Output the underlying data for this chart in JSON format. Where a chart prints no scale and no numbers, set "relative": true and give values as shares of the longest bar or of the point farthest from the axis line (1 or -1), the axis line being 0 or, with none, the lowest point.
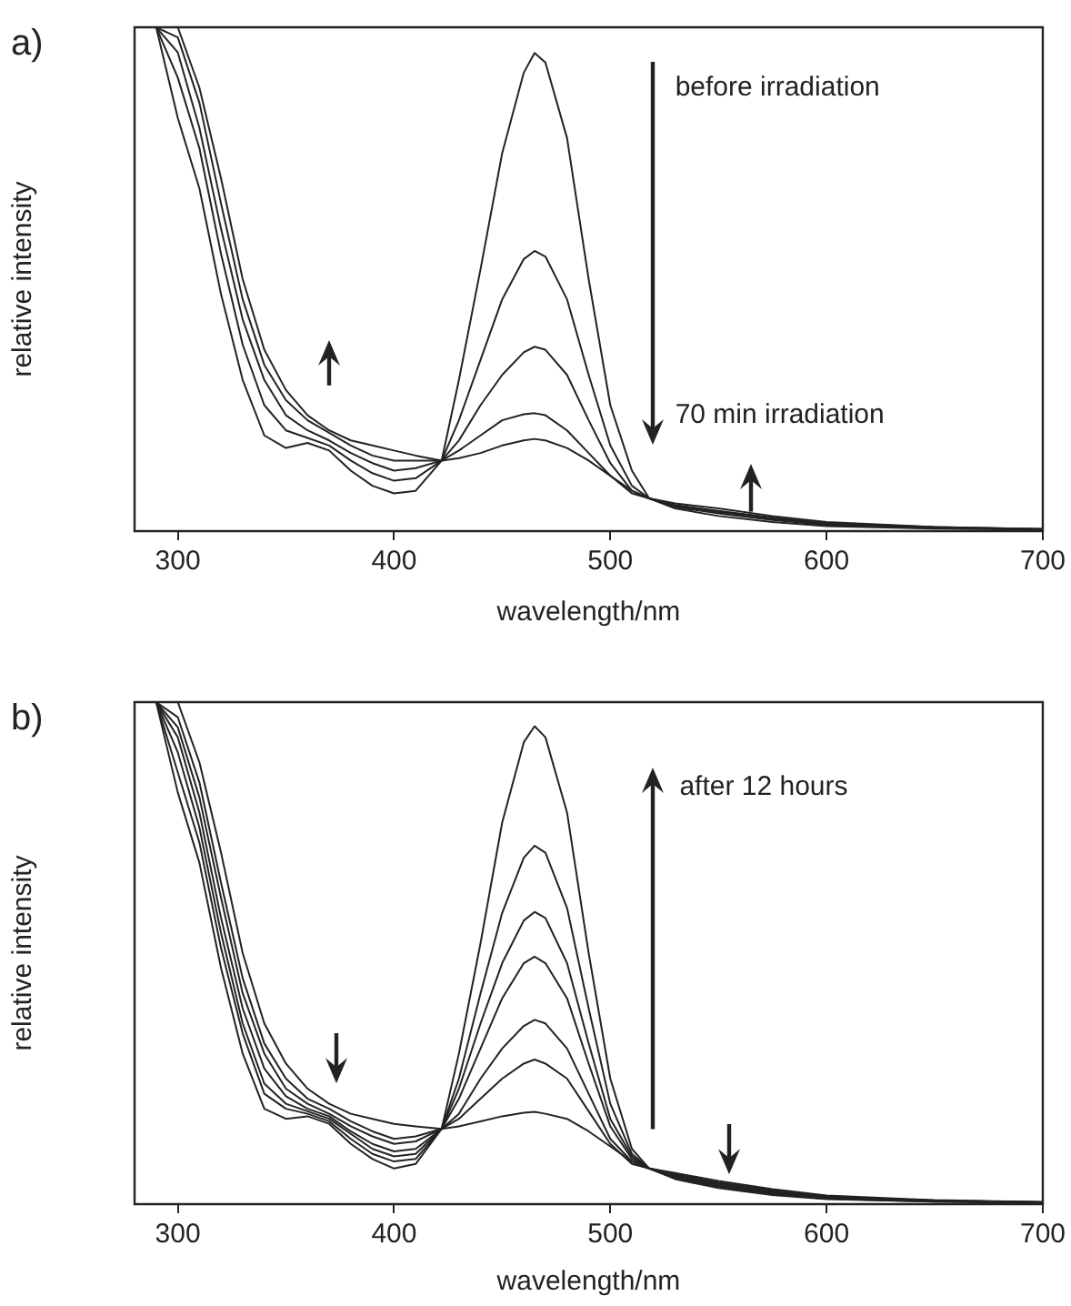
{
  "chart_data": [
    {
      "type": "line",
      "title": "a)",
      "xlabel": "wavelength/nm",
      "ylabel": "relative intensity",
      "relative": true,
      "tick_labels": "x",
      "grid": false,
      "legend": false,
      "marker": "none",
      "line_style": "solid",
      "x": [
        290,
        300,
        310,
        320,
        330,
        340,
        350,
        360,
        370,
        380,
        390,
        400,
        410,
        422,
        430,
        440,
        450,
        460,
        465,
        470,
        480,
        490,
        500,
        510,
        518,
        530,
        550,
        575,
        600,
        650,
        700
      ],
      "xlim": [
        280,
        700
      ],
      "xticks": [
        300,
        400,
        500,
        600,
        700
      ],
      "annotations": [
        "before irradiation",
        "70 min irradiation"
      ],
      "series": [
        {
          "color": "#222222",
          "values": [
            1,
            0.82,
            0.68,
            0.47,
            0.3,
            0.19,
            0.165,
            0.175,
            0.16,
            0.12,
            0.09,
            0.075,
            0.08,
            0.14,
            0.3,
            0.52,
            0.75,
            0.91,
            0.949,
            0.93,
            0.78,
            0.5,
            0.25,
            0.12,
            0.065,
            0.045,
            0.03,
            0.018,
            0.01,
            0.005,
            0.003
          ]
        },
        {
          "color": "#222222",
          "values": [
            1,
            0.9,
            0.76,
            0.55,
            0.37,
            0.25,
            0.2,
            0.185,
            0.17,
            0.14,
            0.115,
            0.1,
            0.105,
            0.14,
            0.22,
            0.34,
            0.46,
            0.54,
            0.556,
            0.545,
            0.46,
            0.31,
            0.17,
            0.09,
            0.065,
            0.048,
            0.035,
            0.022,
            0.012,
            0.006,
            0.003
          ]
        },
        {
          "color": "#222222",
          "values": [
            1,
            0.95,
            0.8,
            0.6,
            0.42,
            0.3,
            0.23,
            0.2,
            0.18,
            0.155,
            0.135,
            0.12,
            0.125,
            0.14,
            0.18,
            0.25,
            0.31,
            0.355,
            0.366,
            0.36,
            0.31,
            0.22,
            0.135,
            0.08,
            0.065,
            0.05,
            0.038,
            0.025,
            0.014,
            0.007,
            0.004
          ]
        },
        {
          "color": "#222222",
          "values": [
            1,
            0.98,
            0.85,
            0.65,
            0.46,
            0.33,
            0.26,
            0.22,
            0.195,
            0.17,
            0.15,
            0.14,
            0.14,
            0.14,
            0.16,
            0.19,
            0.22,
            0.232,
            0.234,
            0.23,
            0.2,
            0.155,
            0.11,
            0.075,
            0.065,
            0.052,
            0.04,
            0.027,
            0.016,
            0.008,
            0.004
          ]
        },
        {
          "color": "#222222",
          "values": [
            1,
            1,
            0.88,
            0.7,
            0.5,
            0.36,
            0.28,
            0.23,
            0.2,
            0.18,
            0.17,
            0.16,
            0.15,
            0.14,
            0.145,
            0.155,
            0.17,
            0.18,
            0.183,
            0.18,
            0.165,
            0.14,
            0.11,
            0.08,
            0.065,
            0.055,
            0.045,
            0.03,
            0.018,
            0.008,
            0.004
          ]
        }
      ]
    },
    {
      "type": "line",
      "title": "b)",
      "xlabel": "wavelength/nm",
      "ylabel": "relative intensity",
      "relative": true,
      "tick_labels": "x",
      "grid": false,
      "legend": false,
      "marker": "none",
      "line_style": "solid",
      "x": [
        290,
        300,
        310,
        320,
        330,
        340,
        350,
        360,
        370,
        380,
        390,
        400,
        410,
        422,
        430,
        440,
        450,
        460,
        465,
        470,
        480,
        490,
        500,
        510,
        518,
        530,
        550,
        575,
        600,
        650,
        700
      ],
      "xlim": [
        280,
        700
      ],
      "xticks": [
        300,
        400,
        500,
        600,
        700
      ],
      "annotations": [
        "after 12 hours"
      ],
      "series": [
        {
          "color": "#222222",
          "values": [
            1,
            0.82,
            0.68,
            0.47,
            0.3,
            0.19,
            0.17,
            0.175,
            0.16,
            0.12,
            0.09,
            0.071,
            0.08,
            0.15,
            0.3,
            0.52,
            0.76,
            0.92,
            0.952,
            0.93,
            0.78,
            0.5,
            0.25,
            0.11,
            0.071,
            0.05,
            0.032,
            0.018,
            0.01,
            0.005,
            0.003
          ]
        },
        {
          "color": "#222222",
          "values": [
            1,
            0.86,
            0.72,
            0.51,
            0.34,
            0.22,
            0.19,
            0.18,
            0.165,
            0.13,
            0.1,
            0.085,
            0.09,
            0.15,
            0.25,
            0.42,
            0.58,
            0.69,
            0.714,
            0.7,
            0.59,
            0.39,
            0.2,
            0.1,
            0.071,
            0.052,
            0.035,
            0.02,
            0.011,
            0.005,
            0.003
          ]
        },
        {
          "color": "#222222",
          "values": [
            1,
            0.9,
            0.75,
            0.54,
            0.36,
            0.24,
            0.2,
            0.185,
            0.17,
            0.14,
            0.11,
            0.095,
            0.1,
            0.15,
            0.23,
            0.36,
            0.48,
            0.565,
            0.582,
            0.57,
            0.48,
            0.32,
            0.17,
            0.095,
            0.071,
            0.054,
            0.037,
            0.022,
            0.012,
            0.006,
            0.003
          ]
        },
        {
          "color": "#222222",
          "values": [
            1,
            0.93,
            0.78,
            0.57,
            0.39,
            0.27,
            0.215,
            0.19,
            0.175,
            0.145,
            0.12,
            0.105,
            0.11,
            0.15,
            0.21,
            0.31,
            0.41,
            0.48,
            0.493,
            0.48,
            0.41,
            0.28,
            0.155,
            0.09,
            0.071,
            0.056,
            0.039,
            0.024,
            0.013,
            0.006,
            0.003
          ]
        },
        {
          "color": "#222222",
          "values": [
            1,
            0.95,
            0.81,
            0.61,
            0.42,
            0.3,
            0.23,
            0.2,
            0.18,
            0.155,
            0.135,
            0.12,
            0.125,
            0.15,
            0.18,
            0.25,
            0.31,
            0.355,
            0.367,
            0.36,
            0.31,
            0.22,
            0.13,
            0.085,
            0.071,
            0.058,
            0.041,
            0.026,
            0.014,
            0.007,
            0.004
          ]
        },
        {
          "color": "#222222",
          "values": [
            1,
            0.97,
            0.84,
            0.64,
            0.45,
            0.32,
            0.25,
            0.21,
            0.19,
            0.165,
            0.145,
            0.13,
            0.135,
            0.15,
            0.17,
            0.21,
            0.25,
            0.28,
            0.288,
            0.28,
            0.25,
            0.185,
            0.12,
            0.08,
            0.071,
            0.06,
            0.043,
            0.028,
            0.015,
            0.007,
            0.004
          ]
        },
        {
          "color": "#222222",
          "values": [
            1,
            1,
            0.88,
            0.7,
            0.5,
            0.36,
            0.28,
            0.23,
            0.2,
            0.18,
            0.17,
            0.16,
            0.155,
            0.15,
            0.155,
            0.165,
            0.175,
            0.182,
            0.184,
            0.18,
            0.17,
            0.145,
            0.115,
            0.085,
            0.071,
            0.062,
            0.046,
            0.03,
            0.017,
            0.008,
            0.004
          ]
        }
      ]
    }
  ]
}
